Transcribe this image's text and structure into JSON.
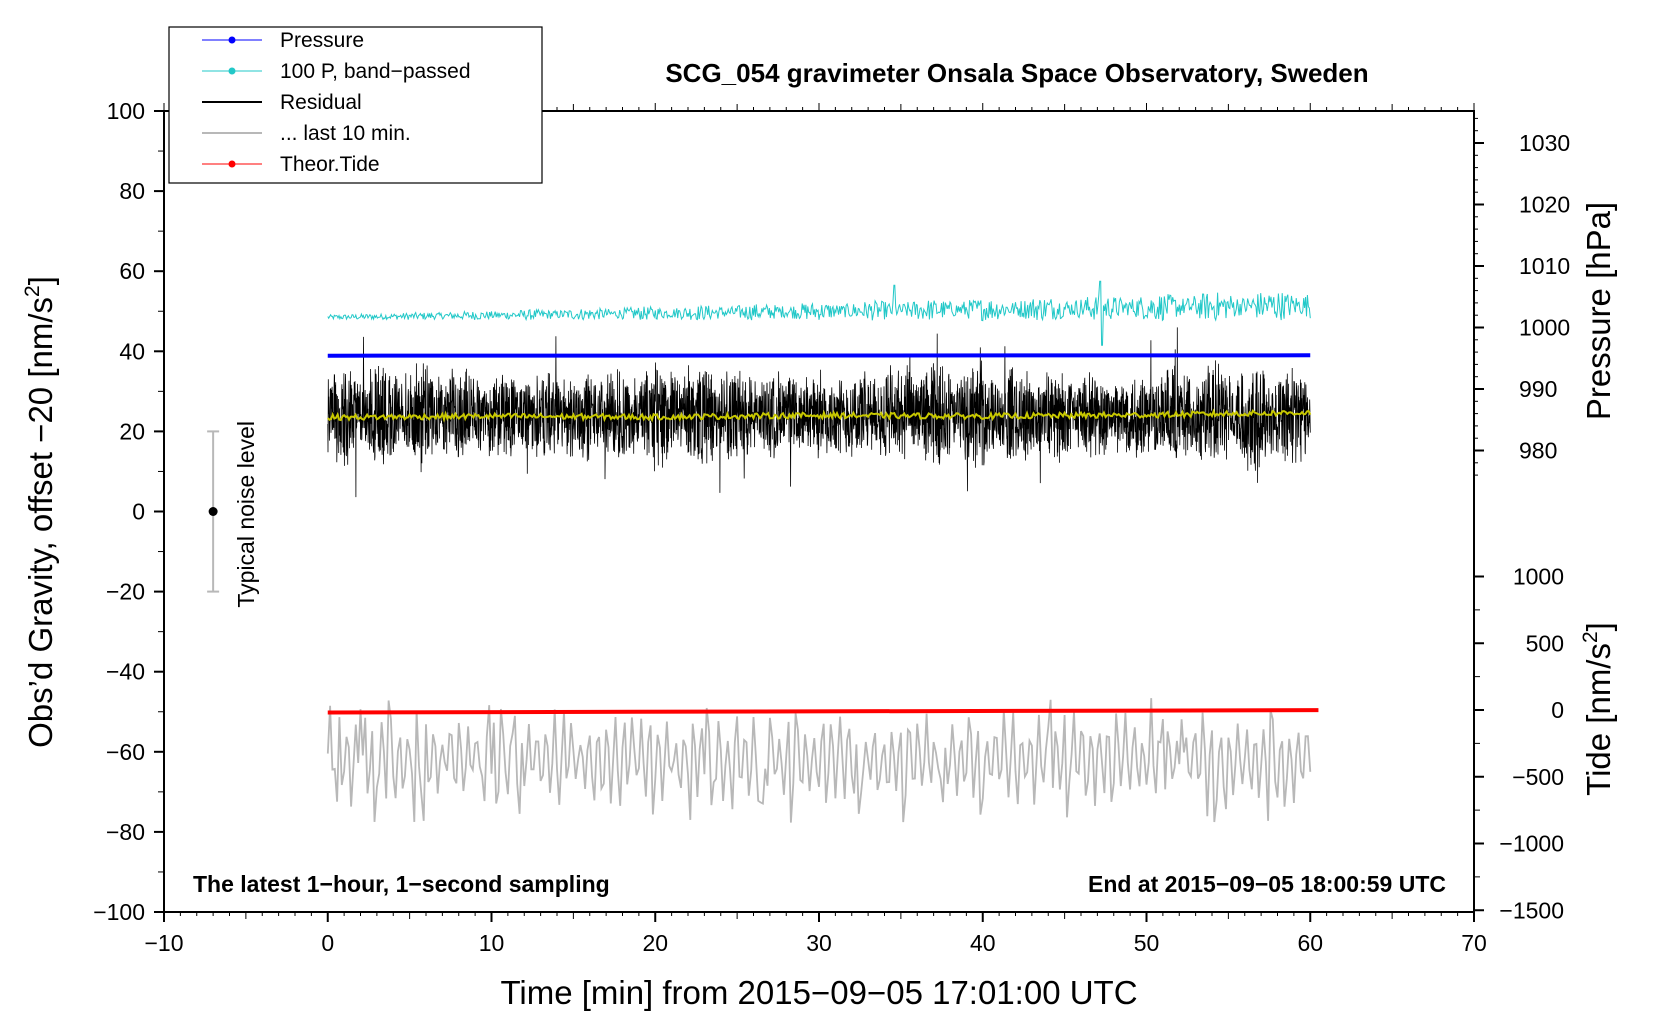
{
  "chart_data": {
    "type": "line",
    "title": "SCG_054 gravimeter Onsala Space Observatory, Sweden",
    "xlabel": "Time [min] from 2015−09−05 17:01:00 UTC",
    "ylabel_left": "Obs’d Gravity, offset −20 [nm/s",
    "ylabel_right_top": "Pressure [hPa]",
    "ylabel_right_bottom": "Tide [nm/s",
    "superscript": "2",
    "ylabel_close": "]",
    "xlim": [
      -10,
      70
    ],
    "ylim_left": [
      -100,
      100
    ],
    "pressure_axis": {
      "ticks": [
        980,
        990,
        1000,
        1010,
        1020,
        1030
      ]
    },
    "tide_axis": {
      "ticks": [
        -1500,
        -1000,
        -500,
        0,
        500,
        1000
      ]
    },
    "x_ticks": [
      -10,
      0,
      10,
      20,
      30,
      40,
      50,
      60,
      70
    ],
    "x_tick_labels": [
      "−10",
      "0",
      "10",
      "20",
      "30",
      "40",
      "50",
      "60",
      "70"
    ],
    "y_ticks_left": [
      -100,
      -80,
      -60,
      -40,
      -20,
      0,
      20,
      40,
      60,
      80,
      100
    ],
    "y_tick_labels_left": [
      "−100",
      "−80",
      "−60",
      "−40",
      "−20",
      "0",
      "20",
      "40",
      "60",
      "80",
      "100"
    ],
    "pressure_tick_labels": [
      "980",
      "990",
      "1000",
      "1010",
      "1020",
      "1030"
    ],
    "tide_tick_labels": [
      "−1500",
      "−1000",
      "−500",
      "0",
      "500",
      "1000"
    ],
    "annotation_left": "The latest 1−hour, 1−second sampling",
    "annotation_right": "End at 2015−09−05 18:00:59 UTC",
    "noise_bar": {
      "label": "Typical noise level",
      "x": -7,
      "center": 0,
      "low": -20,
      "high": 20
    },
    "legend": [
      {
        "label": "Pressure",
        "color": "#0000ff",
        "marker": true
      },
      {
        "label": "100 P, band−passed",
        "color": "#22c8c8",
        "marker": true
      },
      {
        "label": "Residual",
        "color": "#000000",
        "marker": false
      },
      {
        "label": "... last 10 min.",
        "color": "#b8b8b8",
        "marker": false
      },
      {
        "label": "Theor.Tide",
        "color": "#ff0000",
        "marker": true
      }
    ],
    "series": [
      {
        "name": "Pressure",
        "color": "#0000ff",
        "x": [
          0,
          60
        ],
        "y": [
          38.9,
          39.0
        ]
      },
      {
        "name": "Theor.Tide",
        "color": "#ff0000",
        "x": [
          0,
          60.5
        ],
        "y": [
          -50.2,
          -49.6
        ]
      },
      {
        "name": "Residual smoothed",
        "color": "#c8c800",
        "x": [
          0,
          10,
          20,
          30,
          40,
          50,
          60
        ],
        "y": [
          23.5,
          23.8,
          23.6,
          24.0,
          23.8,
          24.1,
          24.7
        ]
      },
      {
        "name": "100 P, band−passed",
        "color": "#22c8c8",
        "x_range": [
          0,
          60
        ],
        "baseline": [
          48.5,
          51.5
        ],
        "amplitude_range": [
          0.6,
          4.0
        ]
      },
      {
        "name": "Residual",
        "color": "#000000",
        "x_range": [
          0,
          60
        ],
        "center": 24,
        "amplitude": 12,
        "y_min": 1,
        "y_max": 46
      },
      {
        "name": "... last 10 min.",
        "color": "#b8b8b8",
        "x_range": [
          0,
          60
        ],
        "center": -62,
        "y_min": -78,
        "y_max": -44
      }
    ]
  }
}
